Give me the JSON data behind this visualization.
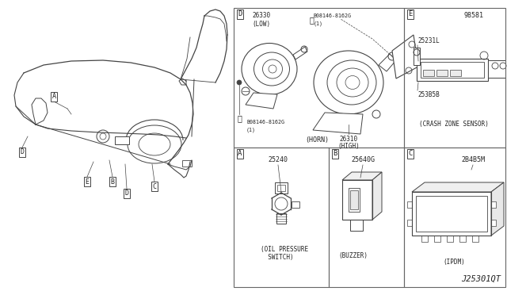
{
  "bg_color": "#ffffff",
  "line_color": "#444444",
  "text_color": "#222222",
  "border_color": "#666666",
  "diagram_code": "J25301QT",
  "panel_A": {
    "label": "A",
    "part_no": "25240",
    "caption_l1": "(OIL PRESSURE",
    "caption_l2": "  SWITCH)"
  },
  "panel_B": {
    "label": "B",
    "part_no": "25640G",
    "caption": "(BUZZER)"
  },
  "panel_C": {
    "label": "C",
    "part_no": "2B4B5M",
    "caption": "(IPDM)"
  },
  "panel_D": {
    "label": "D",
    "part26330": "26330",
    "part26330b": "(LOW)",
    "part26310": "26310",
    "part26310b": "(HIGH)",
    "bolt1": "B08146-8162G",
    "bolt1b": "(1)",
    "bolt2": "B08146-8162G",
    "bolt2b": "(1)",
    "caption": "(HORN)"
  },
  "panel_E": {
    "label": "E",
    "part98581": "98581",
    "part25231L": "25231L",
    "part253B5B": "253B5B",
    "caption": "(CRASH ZONE SENSOR)"
  },
  "car_callouts": [
    {
      "lbl": "A",
      "bx": 0.068,
      "by": 0.635
    },
    {
      "lbl": "B",
      "bx": 0.148,
      "by": 0.148
    },
    {
      "lbl": "C",
      "bx": 0.198,
      "by": 0.13
    },
    {
      "lbl": "D",
      "bx": 0.028,
      "by": 0.185
    },
    {
      "lbl": "D",
      "bx": 0.158,
      "by": 0.12
    },
    {
      "lbl": "E",
      "bx": 0.118,
      "by": 0.148
    }
  ]
}
